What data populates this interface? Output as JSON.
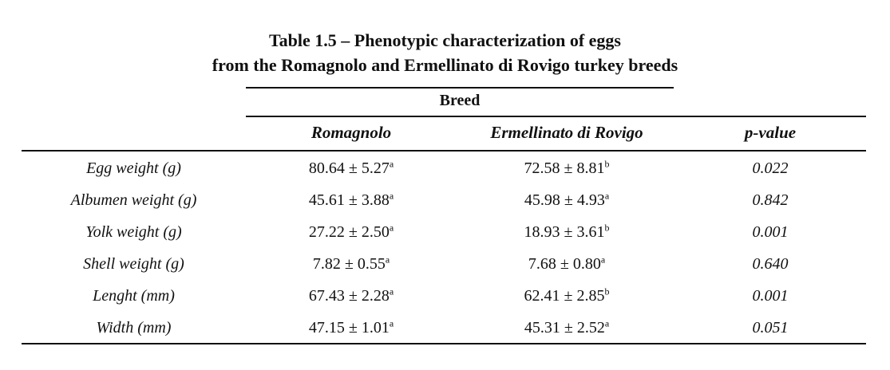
{
  "title": {
    "line1": "Table 1.5 – Phenotypic characterization of eggs",
    "line2": "from the Romagnolo and Ermellinato di Rovigo turkey breeds"
  },
  "table": {
    "group_header": "Breed",
    "columns": [
      "Romagnolo",
      "Ermellinato di Rovigo",
      "p-value"
    ],
    "rows": [
      {
        "label": "Egg weight (g)",
        "romagnolo": "80.64 ± 5.27",
        "romagnolo_sup": "a",
        "ermellinato": "72.58 ± 8.81",
        "ermellinato_sup": "b",
        "p_value": "0.022"
      },
      {
        "label": "Albumen weight (g)",
        "romagnolo": "45.61 ± 3.88",
        "romagnolo_sup": "a",
        "ermellinato": "45.98 ± 4.93",
        "ermellinato_sup": "a",
        "p_value": "0.842"
      },
      {
        "label": "Yolk weight (g)",
        "romagnolo": "27.22 ± 2.50",
        "romagnolo_sup": "a",
        "ermellinato": "18.93 ± 3.61",
        "ermellinato_sup": "b",
        "p_value": "0.001"
      },
      {
        "label": "Shell weight (g)",
        "romagnolo": "7.82 ± 0.55",
        "romagnolo_sup": "a",
        "ermellinato": "7.68 ± 0.80",
        "ermellinato_sup": "a",
        "p_value": "0.640"
      },
      {
        "label": "Lenght (mm)",
        "romagnolo": "67.43 ± 2.28",
        "romagnolo_sup": "a",
        "ermellinato": "62.41 ± 2.85",
        "ermellinato_sup": "b",
        "p_value": "0.001"
      },
      {
        "label": "Width (mm)",
        "romagnolo": "47.15 ± 1.01",
        "romagnolo_sup": "a",
        "ermellinato": "45.31 ± 2.52",
        "ermellinato_sup": "a",
        "p_value": "0.051"
      }
    ]
  }
}
